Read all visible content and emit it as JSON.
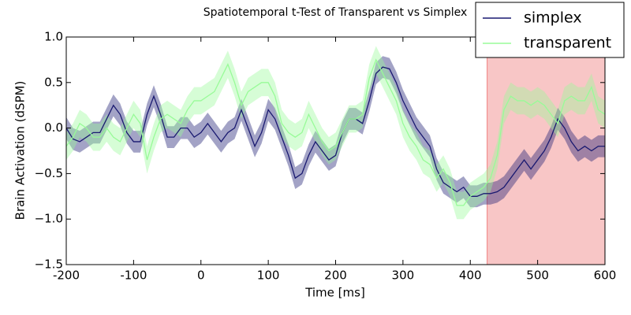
{
  "chart_data": {
    "type": "line",
    "title": "Spatiotemporal t-Test of Transparent vs Simplex",
    "xlabel": "Time [ms]",
    "ylabel": "Brain Activation (dSPM)",
    "x": [
      -200,
      -190,
      -180,
      -170,
      -160,
      -150,
      -140,
      -130,
      -120,
      -110,
      -100,
      -90,
      -80,
      -70,
      -60,
      -50,
      -40,
      -30,
      -20,
      -10,
      0,
      10,
      20,
      30,
      40,
      50,
      60,
      70,
      80,
      90,
      100,
      110,
      120,
      130,
      140,
      150,
      160,
      170,
      180,
      190,
      200,
      210,
      220,
      230,
      240,
      250,
      260,
      270,
      280,
      290,
      300,
      310,
      320,
      330,
      340,
      350,
      360,
      370,
      380,
      390,
      400,
      410,
      420,
      430,
      440,
      450,
      460,
      470,
      480,
      490,
      500,
      510,
      520,
      530,
      540,
      550,
      560,
      570,
      580,
      590,
      600
    ],
    "series": [
      {
        "name": "simplex",
        "color": "#191970",
        "error": 0.12,
        "values": [
          0.0,
          -0.12,
          -0.15,
          -0.1,
          -0.05,
          -0.05,
          0.1,
          0.25,
          0.15,
          -0.05,
          -0.15,
          -0.15,
          0.15,
          0.35,
          0.15,
          -0.1,
          -0.1,
          0.0,
          0.0,
          -0.1,
          -0.05,
          0.05,
          -0.05,
          -0.15,
          -0.05,
          0.0,
          0.2,
          0.0,
          -0.2,
          -0.05,
          0.2,
          0.1,
          -0.1,
          -0.3,
          -0.55,
          -0.5,
          -0.3,
          -0.15,
          -0.25,
          -0.35,
          -0.3,
          -0.05,
          0.1,
          0.1,
          0.05,
          0.3,
          0.6,
          0.67,
          0.65,
          0.5,
          0.3,
          0.15,
          0.0,
          -0.1,
          -0.2,
          -0.45,
          -0.6,
          -0.65,
          -0.7,
          -0.65,
          -0.75,
          -0.75,
          -0.72,
          -0.72,
          -0.7,
          -0.65,
          -0.55,
          -0.45,
          -0.35,
          -0.45,
          -0.35,
          -0.25,
          -0.1,
          0.1,
          0.0,
          -0.15,
          -0.25,
          -0.2,
          -0.25,
          -0.2,
          -0.2
        ]
      },
      {
        "name": "transparent",
        "color": "#98fb98",
        "error": 0.15,
        "values": [
          -0.2,
          -0.1,
          0.05,
          0.0,
          -0.1,
          -0.1,
          0.0,
          -0.1,
          -0.15,
          0.0,
          0.15,
          0.05,
          -0.35,
          -0.1,
          0.1,
          0.15,
          0.1,
          0.05,
          0.2,
          0.3,
          0.3,
          0.35,
          0.4,
          0.55,
          0.7,
          0.5,
          0.25,
          0.4,
          0.45,
          0.5,
          0.5,
          0.35,
          0.05,
          -0.05,
          -0.1,
          -0.05,
          0.15,
          0.0,
          -0.15,
          -0.25,
          -0.2,
          -0.05,
          0.1,
          0.1,
          0.15,
          0.55,
          0.75,
          0.6,
          0.45,
          0.3,
          0.05,
          -0.1,
          -0.2,
          -0.35,
          -0.4,
          -0.55,
          -0.45,
          -0.6,
          -0.85,
          -0.85,
          -0.75,
          -0.7,
          -0.65,
          -0.55,
          -0.3,
          0.2,
          0.35,
          0.3,
          0.3,
          0.25,
          0.3,
          0.25,
          0.15,
          0.05,
          0.3,
          0.35,
          0.3,
          0.3,
          0.45,
          0.2,
          0.15
        ]
      }
    ],
    "highlight": {
      "span": [
        425,
        600
      ],
      "color": "#f08080"
    },
    "xlim": [
      -200,
      600
    ],
    "xticks": [
      -200,
      -100,
      0,
      100,
      200,
      300,
      400,
      500,
      600
    ],
    "ylim": [
      -1.5,
      1.0
    ],
    "yticks": [
      {
        "value": -1.5,
        "label": "−1.5"
      },
      {
        "value": -1.0,
        "label": "−1.0"
      },
      {
        "value": -0.5,
        "label": "−0.5"
      },
      {
        "value": 0.0,
        "label": "0.0"
      },
      {
        "value": 0.5,
        "label": "0.5"
      },
      {
        "value": 1.0,
        "label": "1.0"
      }
    ],
    "legend": "upper right"
  }
}
